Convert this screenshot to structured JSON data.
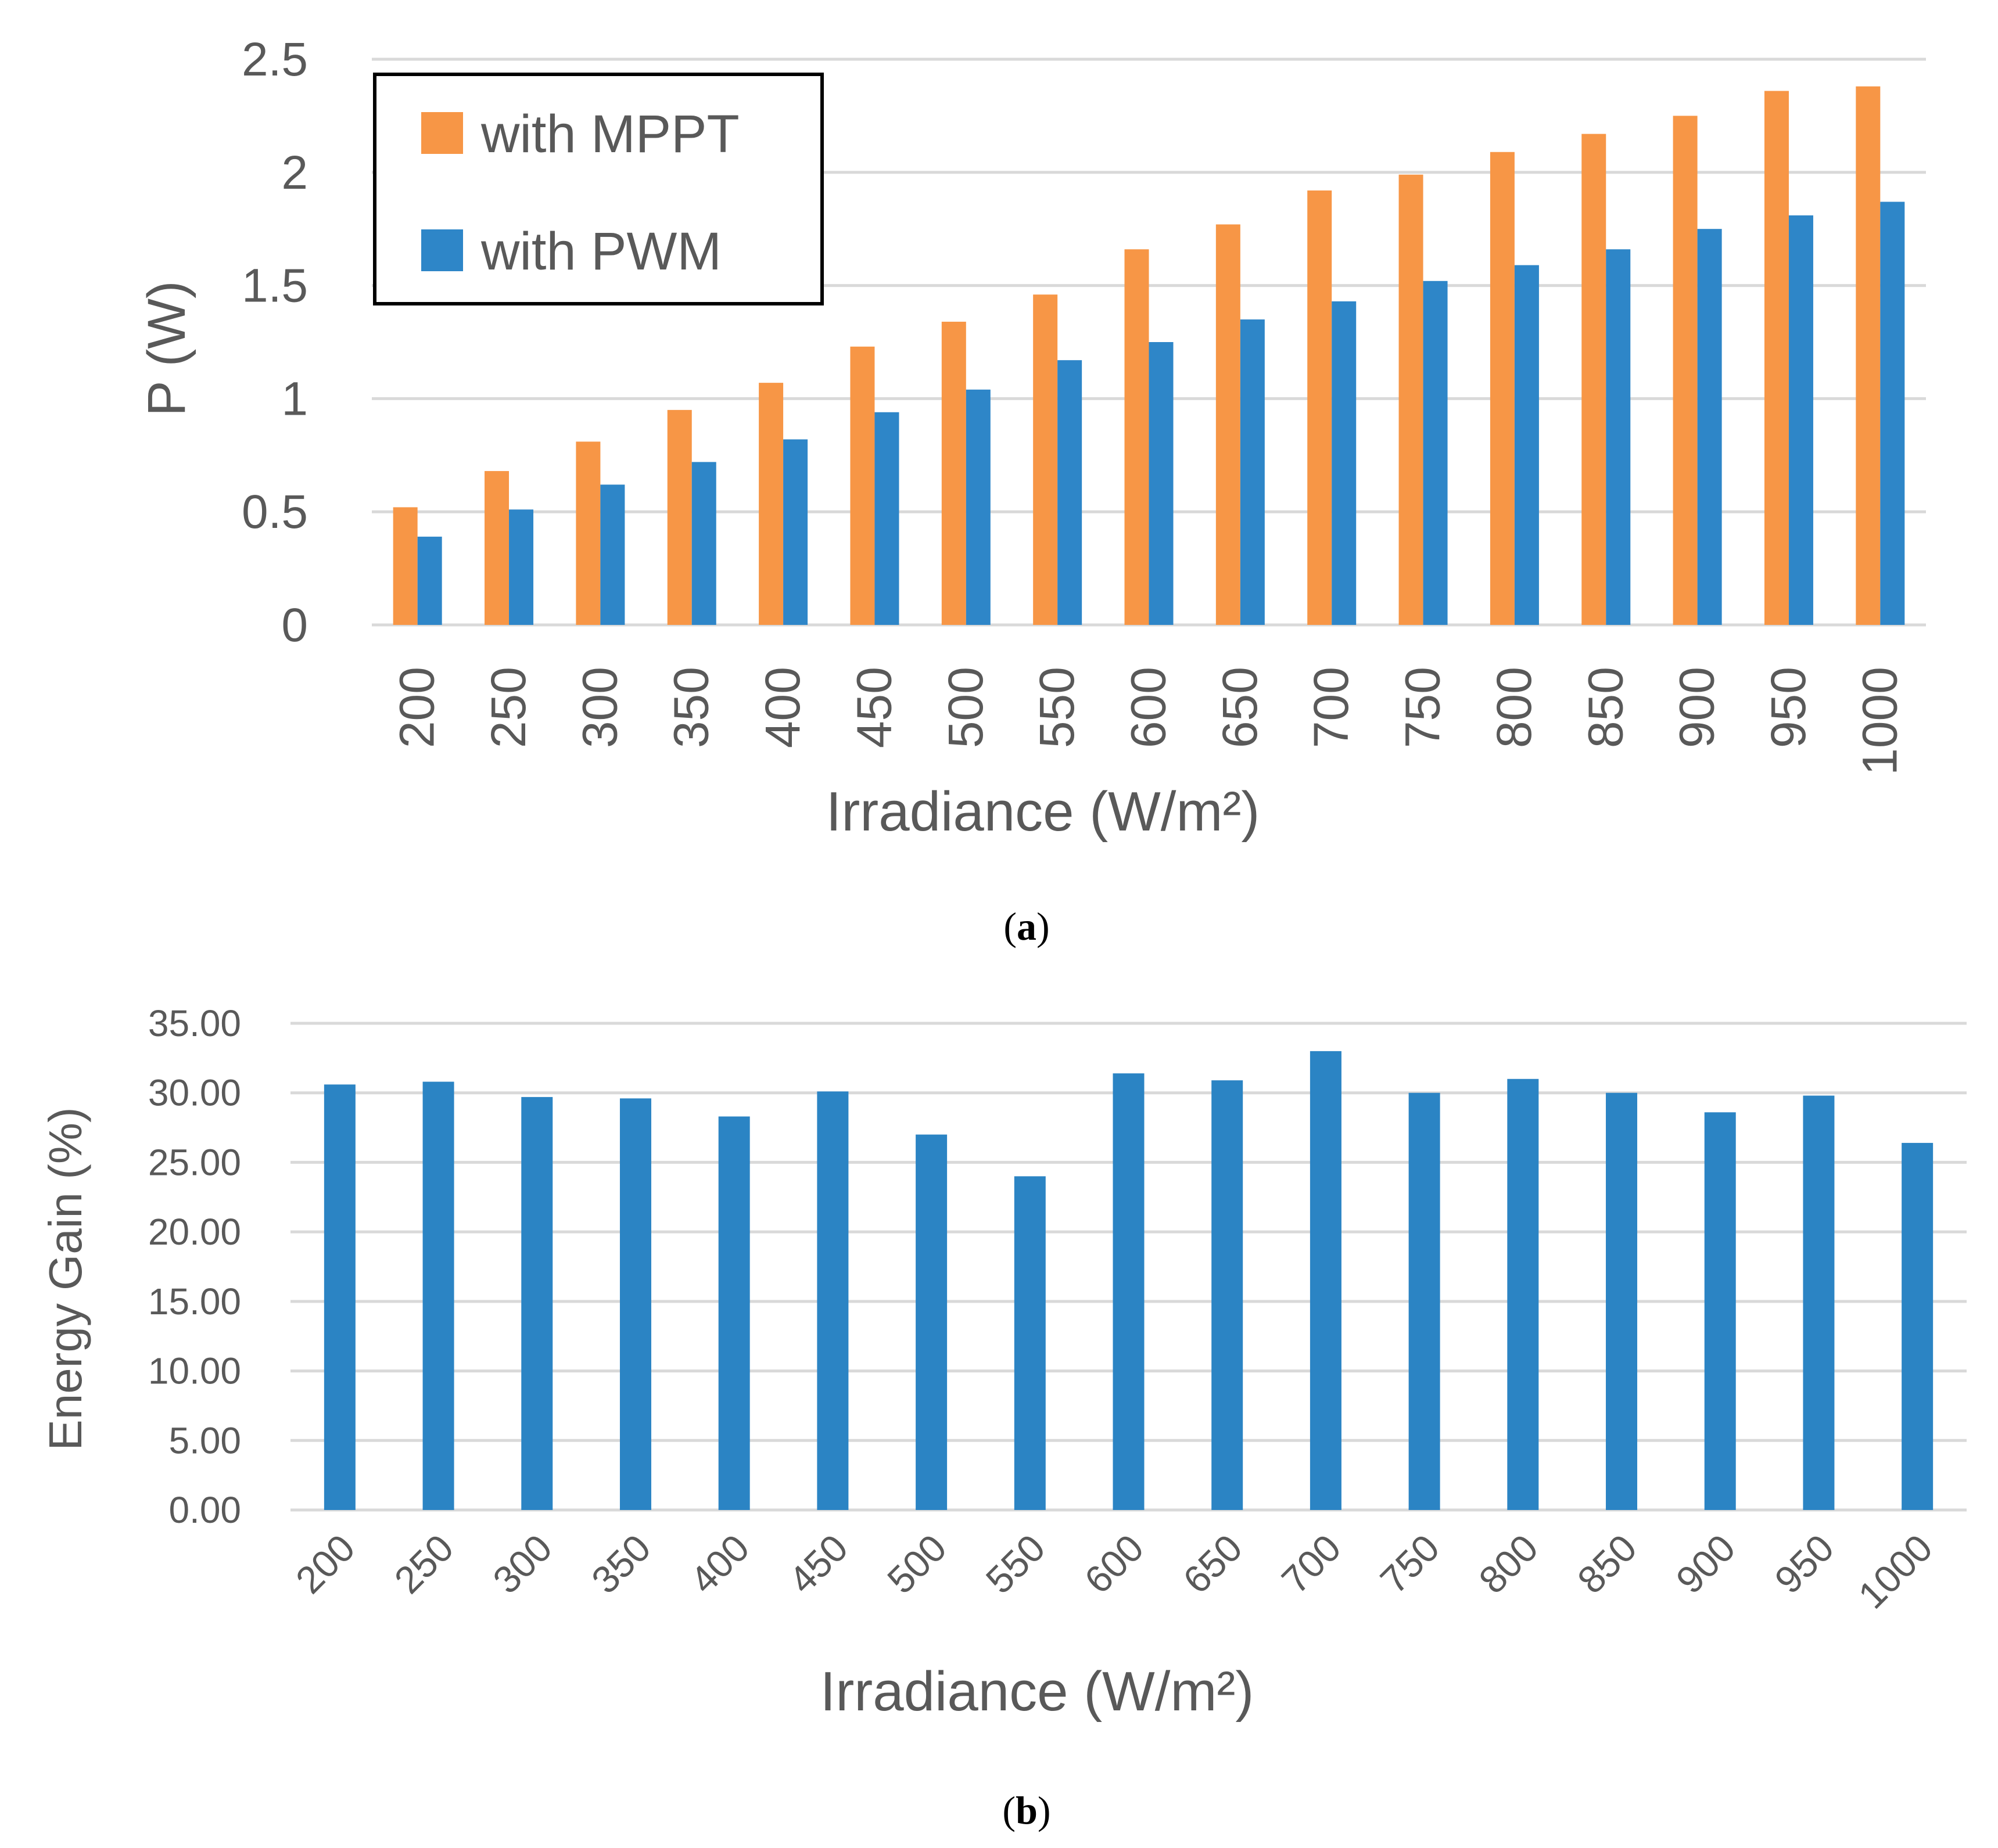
{
  "colors": {
    "mppt": "#F79646",
    "pwm": "#2E86C8",
    "gain": "#2B84C4",
    "grid": "#D9D9D9",
    "text": "#595959"
  },
  "chart_data": [
    {
      "type": "bar",
      "title": "",
      "xlabel": "Irradiance (W/m²)",
      "ylabel": "P (W)",
      "ylim": [
        0,
        2.5
      ],
      "yticks": [
        "0",
        "0.5",
        "1",
        "1.5",
        "2",
        "2.5"
      ],
      "grid": true,
      "legend_position": "top-left",
      "categories": [
        "200",
        "250",
        "300",
        "350",
        "400",
        "450",
        "500",
        "550",
        "600",
        "650",
        "700",
        "750",
        "800",
        "850",
        "900",
        "950",
        "1000"
      ],
      "series": [
        {
          "name": "with MPPT",
          "values": [
            0.52,
            0.68,
            0.81,
            0.95,
            1.07,
            1.23,
            1.34,
            1.46,
            1.66,
            1.77,
            1.92,
            1.99,
            2.09,
            2.17,
            2.25,
            2.36,
            2.38
          ]
        },
        {
          "name": "with PWM",
          "values": [
            0.39,
            0.51,
            0.62,
            0.72,
            0.82,
            0.94,
            1.04,
            1.17,
            1.25,
            1.35,
            1.43,
            1.52,
            1.59,
            1.66,
            1.75,
            1.81,
            1.87
          ]
        }
      ],
      "caption_paren_open": "(",
      "caption_letter": "a",
      "caption_paren_close": ")"
    },
    {
      "type": "bar",
      "title": "",
      "xlabel": "Irradiance (W/m²)",
      "ylabel": "Energy Gain (%)",
      "ylim": [
        0,
        35
      ],
      "yticks": [
        "0.00",
        "5.00",
        "10.00",
        "15.00",
        "20.00",
        "25.00",
        "30.00",
        "35.00"
      ],
      "grid": true,
      "categories": [
        "200",
        "250",
        "300",
        "350",
        "400",
        "450",
        "500",
        "550",
        "600",
        "650",
        "700",
        "750",
        "800",
        "850",
        "900",
        "950",
        "1000"
      ],
      "series": [
        {
          "name": "Energy Gain",
          "values": [
            30.6,
            30.8,
            29.7,
            29.6,
            28.3,
            30.1,
            27.0,
            24.0,
            31.4,
            30.9,
            33.0,
            30.0,
            31.0,
            30.0,
            28.6,
            29.8,
            26.4
          ]
        }
      ],
      "caption_paren_open": "(",
      "caption_letter": "b",
      "caption_paren_close": ")"
    }
  ]
}
